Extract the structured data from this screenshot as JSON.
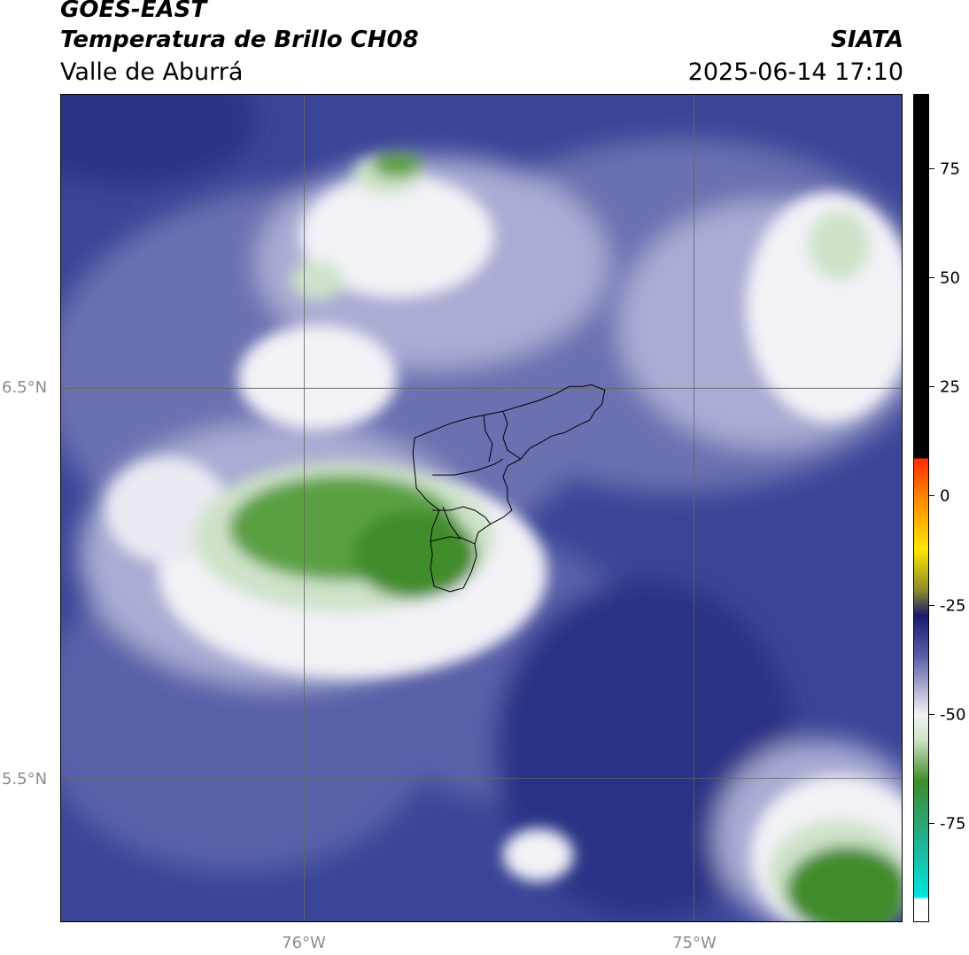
{
  "header": {
    "satellite": "GOES-EAST",
    "product": "Temperatura de Brillo CH08",
    "region": "Valle de Aburrá",
    "agency": "SIATA",
    "datetime": "2025-06-14 17:10"
  },
  "axes": {
    "lat_ticks": [
      "6.5°N",
      "5.5°N"
    ],
    "lon_ticks": [
      "76°W",
      "75°W"
    ]
  },
  "colorbar": {
    "ticks": [
      "75",
      "50",
      "25",
      "0",
      "-25",
      "-50",
      "-75"
    ],
    "colors": {
      "top": "#000000",
      "red": "#ff2a00",
      "orange": "#ff8c00",
      "yellow": "#ffe600",
      "olive": "#8a8a2a",
      "navy": "#1a1a6e",
      "blue_mid": "#5a60a8",
      "white": "#f2f2f5",
      "green_light": "#cfe3c8",
      "green": "#3f8c2a",
      "teal": "#1fb59a",
      "cyan": "#00e5e0"
    }
  },
  "map_colors": {
    "deep_blue": "#2b3285",
    "blue": "#3b4597",
    "mid_blue": "#6a70b0",
    "light_blue": "#a9acd3",
    "white": "#f2f2f7",
    "light_green": "#cfe2c9",
    "green": "#5aa043",
    "dark_green": "#3f8c2a"
  }
}
